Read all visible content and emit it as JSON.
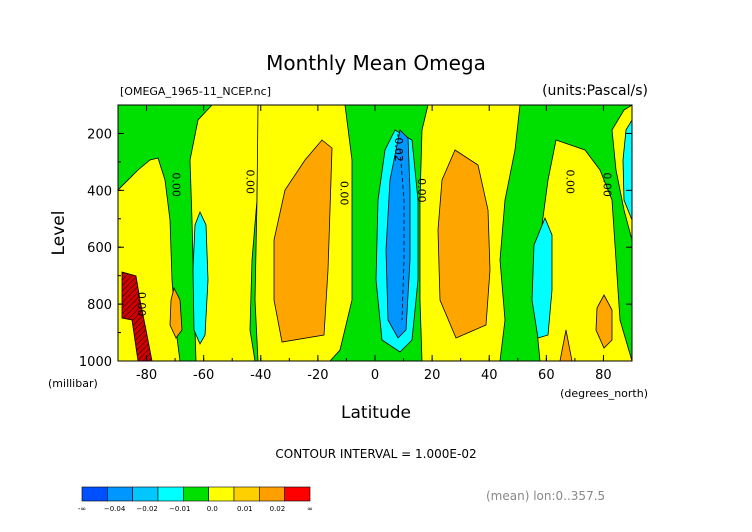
{
  "chart_data": {
    "type": "contour",
    "title": "Monthly Mean Omega",
    "file_label": "[OMEGA_1965-11_NCEP.nc]",
    "units_label": "(units:Pascal/s)",
    "xlabel": "Latitude",
    "x_unit_label": "(degrees_north)",
    "ylabel": "Level",
    "y_unit_label": "(millibar)",
    "xlim": [
      -90,
      90
    ],
    "ylim": [
      1000,
      100
    ],
    "x_ticks": [
      "-80",
      "-60",
      "-40",
      "-20",
      "0",
      "20",
      "40",
      "60",
      "80"
    ],
    "y_ticks": [
      "200",
      "400",
      "600",
      "800",
      "1000"
    ],
    "contour_interval": "CONTOUR INTERVAL = 1.000E-02",
    "mean_note": "(mean) lon:0..357.5",
    "contour_labels": [
      {
        "text": "0.00",
        "lat": -71,
        "level": 380
      },
      {
        "text": "0.00",
        "lat": -83,
        "level": 800
      },
      {
        "text": "0.00",
        "lat": -45,
        "level": 370
      },
      {
        "text": "0.00",
        "lat": -12,
        "level": 410
      },
      {
        "text": "0.00",
        "lat": 15,
        "level": 400
      },
      {
        "text": "-0.02",
        "lat": 7,
        "level": 250
      },
      {
        "text": "0.00",
        "lat": 67,
        "level": 370
      },
      {
        "text": "0.00",
        "lat": 80,
        "level": 380
      }
    ],
    "colorbar": {
      "colors": [
        "#0050ff",
        "#0096ff",
        "#00c8ff",
        "#00ffff",
        "#00e000",
        "#ffff00",
        "#ffd000",
        "#ffa000",
        "#ff0000"
      ],
      "labels": [
        "-∞",
        "−0.04",
        "−0.02",
        "−0.01",
        "0.0",
        "0.01",
        "0.02",
        "∞"
      ]
    },
    "fill_colors": {
      "red": "#d00000",
      "orange": "#ffa500",
      "yellow": "#ffff00",
      "green": "#00e000",
      "cyan": "#00ffff",
      "blue": "#0096ff"
    }
  }
}
